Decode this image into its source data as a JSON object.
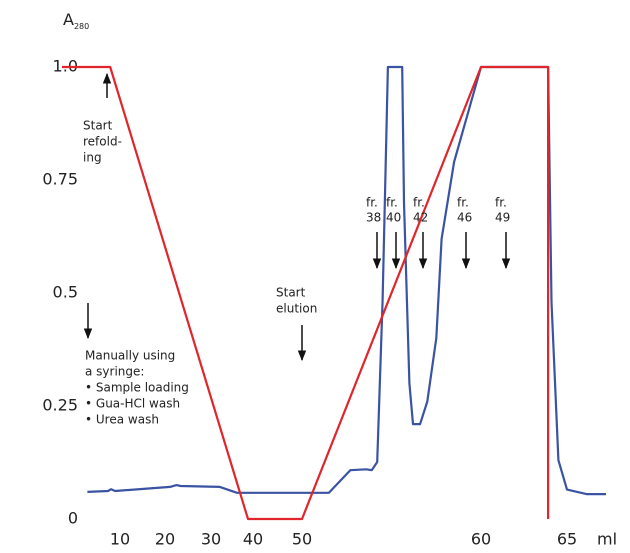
{
  "chart_data": {
    "type": "line",
    "y_label": {
      "text": "A",
      "subscript": "280"
    },
    "x_label": "ml",
    "xlim": [
      -3,
      68
    ],
    "ylim": [
      0,
      1
    ],
    "xticks": [
      10,
      20,
      30,
      40,
      50,
      60,
      65
    ],
    "yticks": [
      0,
      0.25,
      0.5,
      0.75,
      {
        "value": 1,
        "label": "1.0"
      }
    ],
    "series": [
      {
        "color": "#3b53a3",
        "x": [
          2.7,
          7.3,
          8,
          8.9,
          21.1,
          22.5,
          23.4,
          32.1,
          36.2,
          42,
          51.5,
          52.7,
          53.6,
          53.9,
          54.2,
          54.5,
          54.8,
          55.6,
          55.7,
          56.0,
          56.2,
          56.6,
          57.0,
          57.5,
          57.8,
          58.5,
          60,
          63.9,
          64.1,
          64.5,
          65.0,
          66.3,
          67.6
        ],
        "values": [
          0.06,
          0.062,
          0.066,
          0.062,
          0.071,
          0.075,
          0.073,
          0.071,
          0.058,
          0.058,
          0.058,
          0.108,
          0.11,
          0.108,
          0.126,
          0.484,
          1.0,
          1.0,
          0.7,
          0.3,
          0.21,
          0.21,
          0.26,
          0.4,
          0.62,
          0.79,
          1.0,
          1.0,
          0.48,
          0.13,
          0.065,
          0.055,
          0.055
        ]
      },
      {
        "color": "#e0252b",
        "x": [
          -3,
          7.8,
          38.8,
          50,
          60,
          63.9,
          63.9
        ],
        "values": [
          1,
          1,
          0,
          0,
          1,
          1,
          0
        ]
      }
    ],
    "annotations": [
      {
        "lines": [
          "Start",
          "refold-",
          "ing"
        ]
      },
      {
        "lines": [
          "Manually using",
          "a syringe:",
          "• Sample loading",
          "• Gua-HCl wash",
          "• Urea wash"
        ]
      },
      {
        "lines": [
          "Start",
          "elution"
        ]
      },
      {
        "lines": [
          "fr.",
          "38"
        ]
      },
      {
        "lines": [
          "fr.",
          "40"
        ]
      },
      {
        "lines": [
          "fr.",
          "42"
        ]
      },
      {
        "lines": [
          "fr.",
          "46"
        ]
      },
      {
        "lines": [
          "fr.",
          "49"
        ]
      }
    ]
  }
}
